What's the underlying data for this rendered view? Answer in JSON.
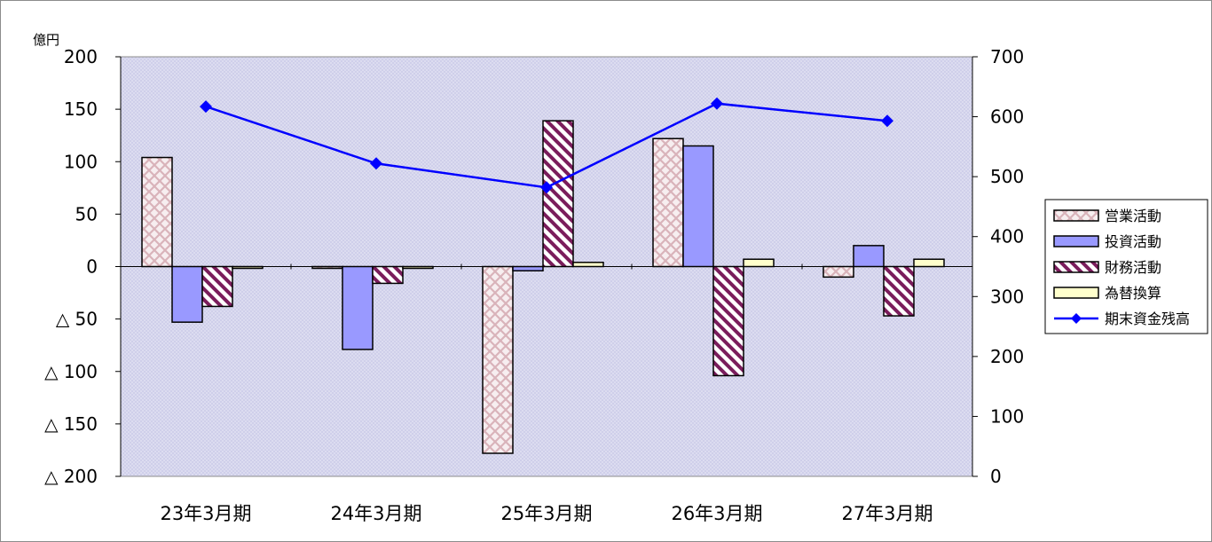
{
  "chart_data": {
    "type": "bar",
    "title": "",
    "ylabel": "億円",
    "categories": [
      "23年3月期",
      "24年3月期",
      "25年3月期",
      "26年3月期",
      "27年3月期"
    ],
    "ylim": [
      -200,
      200
    ],
    "y_ticks": [
      200,
      150,
      100,
      50,
      0,
      -50,
      -100,
      -150,
      -200
    ],
    "y_tick_labels": [
      "200",
      "150",
      "100",
      "50",
      "0",
      "△ 50",
      "△ 100",
      "△ 150",
      "△ 200"
    ],
    "y2lim": [
      0,
      700
    ],
    "y2_ticks": [
      700,
      600,
      500,
      400,
      300,
      200,
      100,
      0
    ],
    "y2_tick_labels": [
      "700",
      "600",
      "500",
      "400",
      "300",
      "200",
      "100",
      "0"
    ],
    "grid": false,
    "legend_position": "right",
    "series": [
      {
        "name": "営業活動",
        "type": "bar",
        "axis": "left",
        "pattern": "crosshatch",
        "color": "#e8c8cc",
        "values": [
          104,
          -1,
          -178,
          122,
          -10
        ]
      },
      {
        "name": "投資活動",
        "type": "bar",
        "axis": "left",
        "pattern": "solid",
        "color": "#9999ff",
        "values": [
          -53,
          -79,
          -4,
          115,
          20
        ]
      },
      {
        "name": "財務活動",
        "type": "bar",
        "axis": "left",
        "pattern": "diagonal",
        "color": "#7a1d5c",
        "values": [
          -38,
          -16,
          139,
          -104,
          -47
        ]
      },
      {
        "name": "為替換算",
        "type": "bar",
        "axis": "left",
        "pattern": "solid",
        "color": "#ffffcc",
        "values": [
          -1,
          -1,
          4,
          7,
          7
        ]
      },
      {
        "name": "期末資金残高",
        "type": "line",
        "axis": "right",
        "marker": "diamond",
        "color": "#0000ff",
        "values": [
          617,
          522,
          482,
          622,
          593
        ]
      }
    ],
    "colors": {
      "plot_background": "#d8d8ef",
      "axis": "#000000"
    }
  }
}
